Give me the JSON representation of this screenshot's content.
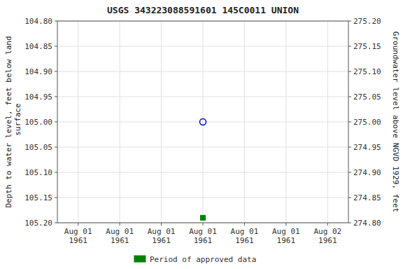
{
  "chart_data": {
    "type": "scatter",
    "title": "USGS 343223088591601 145C0011  UNION",
    "y_label": "Depth to water level, feet below land\n surface",
    "y2_label": "Groundwater level above NGVD 1929, feet",
    "categories": [
      "Aug 01\n1961",
      "Aug 01\n1961",
      "Aug 01\n1961",
      "Aug 01\n1961",
      "Aug 01\n1961",
      "Aug 01\n1961",
      "Aug 02\n1961"
    ],
    "series": [
      {
        "color": "#0000cd",
        "marker": "circle-open",
        "line_style": "none",
        "values": [
          null,
          null,
          null,
          105.0,
          null,
          null,
          null
        ]
      },
      {
        "name": "Period of approved data",
        "color": "#008000",
        "marker": "square",
        "line_style": "none",
        "values": [
          null,
          null,
          null,
          105.19,
          null,
          null,
          null
        ]
      }
    ],
    "ylim": [
      105.2,
      104.8
    ],
    "yticks": [
      {
        "value": 104.8,
        "label": "104.80"
      },
      {
        "value": 104.85,
        "label": "104.85"
      },
      {
        "value": 104.9,
        "label": "104.90"
      },
      {
        "value": 104.95,
        "label": "104.95"
      },
      {
        "value": 105.0,
        "label": "105.00"
      },
      {
        "value": 105.05,
        "label": "105.05"
      },
      {
        "value": 105.1,
        "label": "105.10"
      },
      {
        "value": 105.15,
        "label": "105.15"
      },
      {
        "value": 105.2,
        "label": "105.20"
      }
    ],
    "y2lim": [
      274.8,
      275.2
    ],
    "y2ticks": [
      {
        "value": 274.8,
        "label": "274.80"
      },
      {
        "value": 274.85,
        "label": "274.85"
      },
      {
        "value": 274.9,
        "label": "274.90"
      },
      {
        "value": 274.95,
        "label": "274.95"
      },
      {
        "value": 275.0,
        "label": "275.00"
      },
      {
        "value": 275.05,
        "label": "275.05"
      },
      {
        "value": 275.1,
        "label": "275.10"
      },
      {
        "value": 275.15,
        "label": "275.15"
      },
      {
        "value": 275.2,
        "label": "275.20"
      }
    ],
    "grid": true,
    "legend": "bottom"
  }
}
